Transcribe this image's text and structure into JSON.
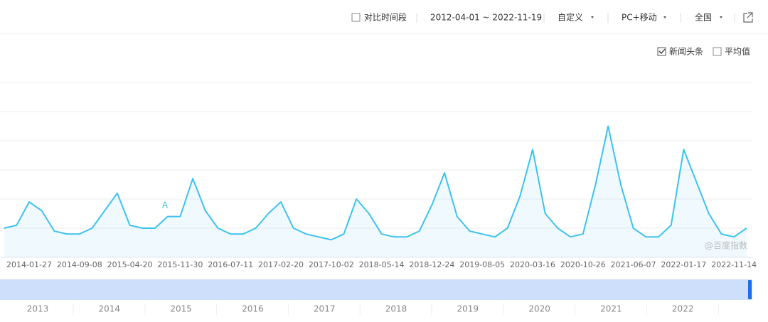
{
  "toolbar": {
    "compare": "对比时间段",
    "range": "2012-04-01 ~ 2022-11-19",
    "custom": "自定义",
    "device": "PC+移动",
    "region": "全国"
  },
  "legend": {
    "news": "新闻头条",
    "average": "平均值"
  },
  "chart_data": {
    "type": "line",
    "watermark": "@百度指数",
    "marker": "A",
    "categories": [
      null,
      null,
      "2014-01-27",
      null,
      null,
      null,
      "2014-09-08",
      null,
      null,
      null,
      "2015-04-20",
      null,
      null,
      null,
      "2015-11-30",
      null,
      null,
      null,
      "2016-07-11",
      null,
      null,
      null,
      "2017-02-20",
      null,
      null,
      null,
      "2017-10-02",
      null,
      null,
      null,
      "2018-05-14",
      null,
      null,
      null,
      "2018-12-24",
      null,
      null,
      null,
      "2019-08-05",
      null,
      null,
      null,
      "2020-03-16",
      null,
      null,
      null,
      "2020-10-26",
      null,
      null,
      null,
      "2021-06-07",
      null,
      null,
      null,
      "2022-01-17",
      null,
      null,
      null,
      "2022-11-14",
      null
    ],
    "series": [
      {
        "name": "新闻头条",
        "color": "#3dc2ef",
        "values": [
          1.0,
          1.1,
          1.9,
          1.6,
          0.9,
          0.8,
          0.8,
          1.0,
          1.6,
          2.2,
          1.1,
          1.0,
          1.0,
          1.4,
          1.4,
          2.7,
          1.6,
          1.0,
          0.8,
          0.8,
          1.0,
          1.5,
          1.9,
          1.0,
          0.8,
          0.7,
          0.6,
          0.8,
          2.0,
          1.5,
          0.8,
          0.7,
          0.7,
          0.9,
          1.8,
          2.9,
          1.4,
          0.9,
          0.8,
          0.7,
          1.0,
          2.1,
          3.7,
          1.5,
          1.0,
          0.7,
          0.8,
          2.5,
          4.5,
          2.5,
          1.0,
          0.7,
          0.7,
          1.1,
          3.7,
          2.6,
          1.5,
          0.8,
          0.7,
          1.0
        ]
      }
    ],
    "ylim": [
      0,
      6
    ],
    "grid": true
  },
  "navigator": {
    "years": [
      "2013",
      "2014",
      "2015",
      "2016",
      "2017",
      "2018",
      "2019",
      "2020",
      "2021",
      "2022"
    ]
  }
}
